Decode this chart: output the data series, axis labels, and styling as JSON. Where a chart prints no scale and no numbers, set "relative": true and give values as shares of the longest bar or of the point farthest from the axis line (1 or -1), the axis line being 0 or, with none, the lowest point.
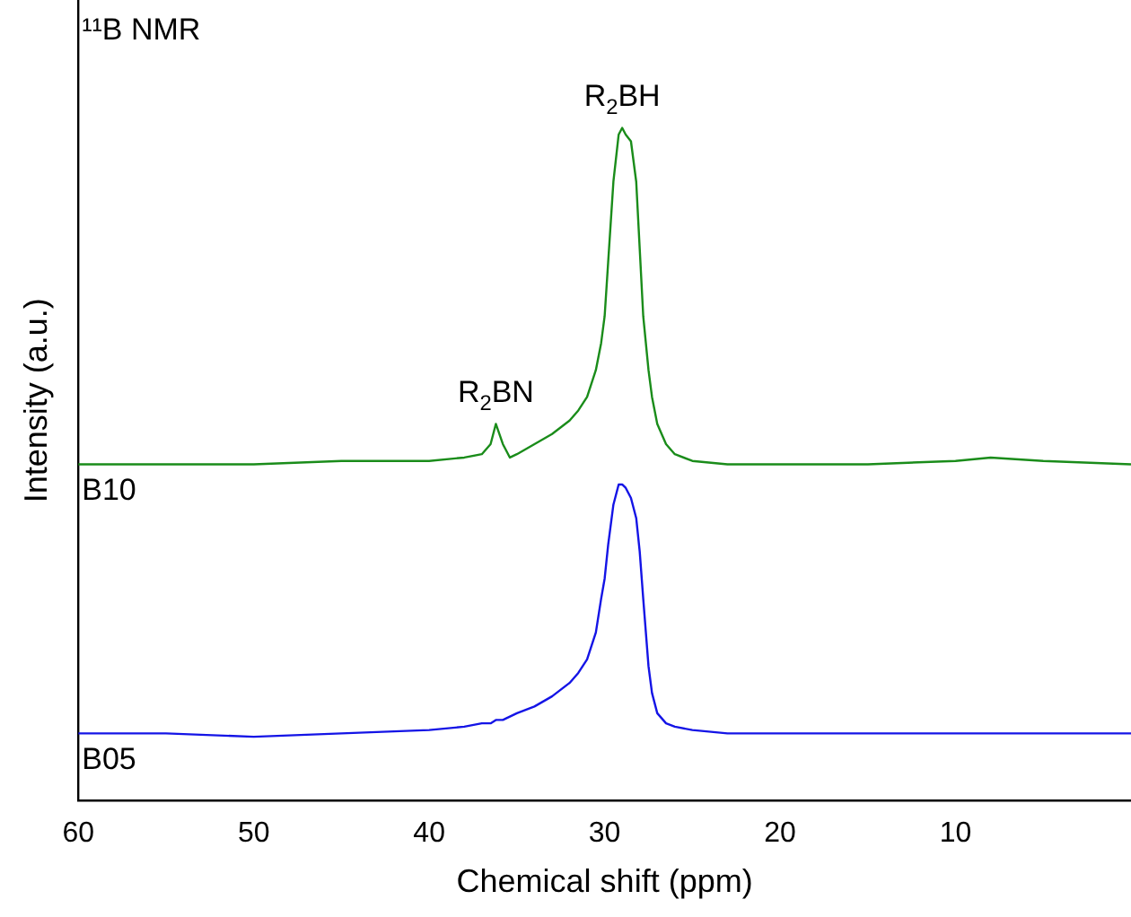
{
  "chart_data": {
    "type": "line",
    "relative": true,
    "xlabel": "Chemical shift (ppm)",
    "ylabel": "Intensity (a.u.)",
    "xlim": [
      60,
      0
    ],
    "xticks": [
      60,
      50,
      40,
      30,
      20,
      10
    ],
    "x": [
      60,
      55,
      50,
      45,
      40,
      38,
      37,
      36.5,
      36.2,
      35.8,
      35.4,
      35,
      34,
      33,
      32,
      31.5,
      31,
      30.5,
      30.2,
      30,
      29.8,
      29.5,
      29.2,
      29,
      28.8,
      28.5,
      28.2,
      28,
      27.8,
      27.5,
      27.3,
      27,
      26.5,
      26,
      25,
      23,
      20,
      15,
      10,
      8,
      5,
      0
    ],
    "series": [
      {
        "name": "B10",
        "color": "#1a8c1a",
        "values": [
          0.5,
          0.5,
          0.5,
          0.505,
          0.505,
          0.51,
          0.515,
          0.53,
          0.56,
          0.53,
          0.51,
          0.515,
          0.53,
          0.545,
          0.565,
          0.58,
          0.6,
          0.64,
          0.68,
          0.72,
          0.8,
          0.92,
          0.99,
          1.0,
          0.99,
          0.98,
          0.92,
          0.82,
          0.72,
          0.64,
          0.6,
          0.56,
          0.53,
          0.515,
          0.505,
          0.5,
          0.5,
          0.5,
          0.505,
          0.51,
          0.505,
          0.5
        ]
      },
      {
        "name": "B05",
        "color": "#1414e6",
        "values": [
          0.1,
          0.1,
          0.095,
          0.1,
          0.105,
          0.11,
          0.115,
          0.115,
          0.12,
          0.12,
          0.125,
          0.13,
          0.14,
          0.155,
          0.175,
          0.19,
          0.21,
          0.25,
          0.3,
          0.33,
          0.38,
          0.44,
          0.47,
          0.47,
          0.465,
          0.45,
          0.42,
          0.37,
          0.3,
          0.2,
          0.16,
          0.13,
          0.115,
          0.11,
          0.105,
          0.1,
          0.1,
          0.1,
          0.1,
          0.1,
          0.1,
          0.1
        ]
      }
    ],
    "annotations": [
      "¹¹B NMR",
      {
        "text": "R$_{2}$BH",
        "x": 29,
        "y": 1.0
      },
      {
        "text": "R$_{2}$BN",
        "x": 36.2,
        "y": 0.56
      }
    ]
  }
}
